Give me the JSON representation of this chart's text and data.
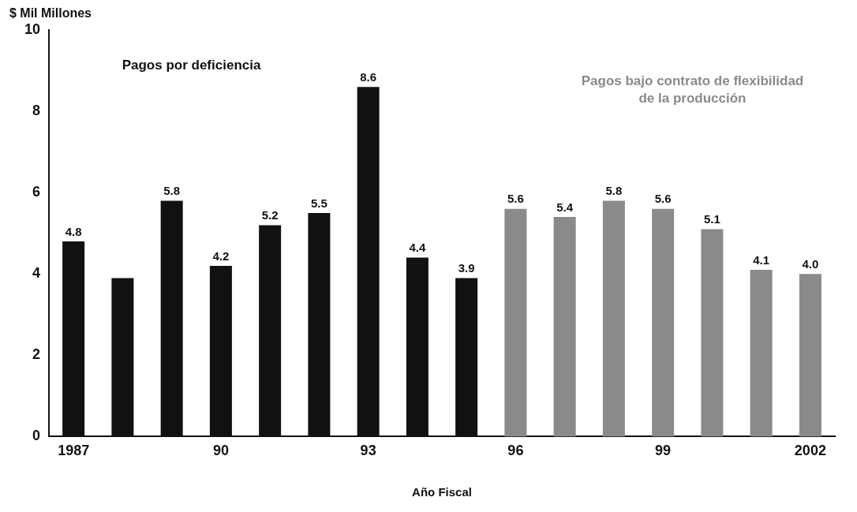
{
  "chart_data": {
    "type": "bar",
    "ylabel": "$ Mil Millones",
    "xlabel": "Año Fiscal",
    "categories": [
      "1987",
      null,
      null,
      "90",
      null,
      null,
      "93",
      null,
      null,
      "96",
      null,
      null,
      "99",
      null,
      null,
      "2002"
    ],
    "series": [
      {
        "name": "Pagos por deficiencia",
        "color": "#111111",
        "values": [
          4.8,
          3.9,
          5.8,
          4.2,
          5.2,
          5.5,
          8.6,
          4.4,
          3.9,
          null,
          null,
          null,
          null,
          null,
          null,
          null
        ],
        "value_labels": [
          "4.8",
          null,
          "5.8",
          "4.2",
          "5.2",
          "5.5",
          "8.6",
          "4.4",
          "3.9",
          null,
          null,
          null,
          null,
          null,
          null,
          null
        ]
      },
      {
        "name": "Pagos bajo contrato de flexibilidad de la producción",
        "color": "#8a8a8a",
        "values": [
          null,
          null,
          null,
          null,
          null,
          null,
          null,
          null,
          null,
          5.6,
          5.4,
          5.8,
          5.6,
          5.1,
          4.1,
          4.0
        ],
        "value_labels": [
          null,
          null,
          null,
          null,
          null,
          null,
          null,
          null,
          null,
          "5.6",
          "5.4",
          "5.8",
          "5.6",
          "5.1",
          "4.1",
          "4.0"
        ]
      }
    ],
    "ylim": [
      0,
      10
    ],
    "yticks": [
      0,
      2,
      4,
      6,
      8,
      10
    ],
    "grid": false,
    "legend": false
  }
}
